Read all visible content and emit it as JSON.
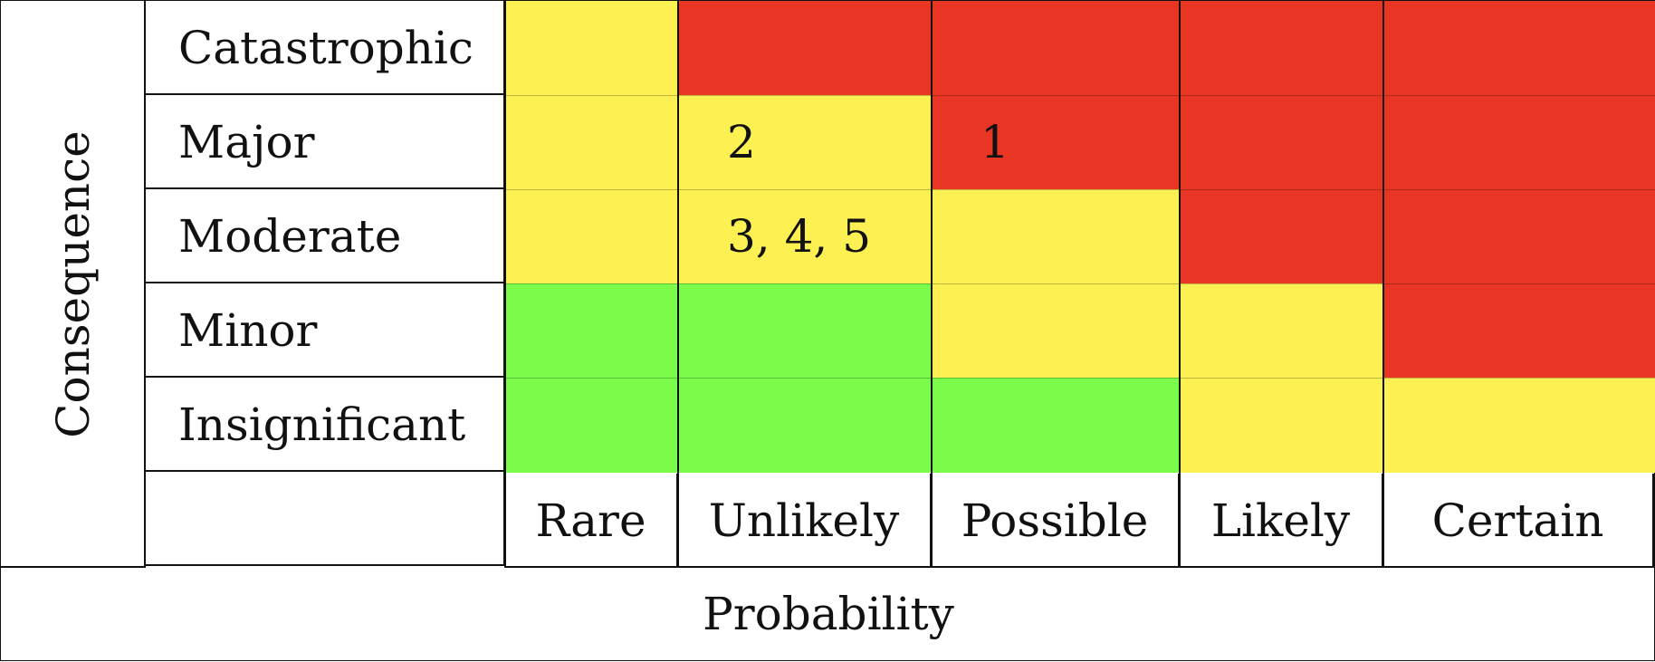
{
  "y_axis_title": "Consequence",
  "x_axis_title": "Probability",
  "consequence_levels": [
    "Catastrophic",
    "Major",
    "Moderate",
    "Minor",
    "Insignificant"
  ],
  "probability_levels": [
    "Rare",
    "Unlikely",
    "Possible",
    "Likely",
    "Certain"
  ],
  "colors": {
    "low": "#7bfc4b",
    "medium": "#fdf052",
    "high": "#e93624"
  },
  "matrix": [
    [
      "medium",
      "high",
      "high",
      "high",
      "high"
    ],
    [
      "medium",
      "medium",
      "high",
      "high",
      "high"
    ],
    [
      "medium",
      "medium",
      "medium",
      "high",
      "high"
    ],
    [
      "low",
      "low",
      "medium",
      "medium",
      "high"
    ],
    [
      "low",
      "low",
      "low",
      "medium",
      "medium"
    ]
  ],
  "cell_entries": [
    [
      "",
      "",
      "",
      "",
      ""
    ],
    [
      "",
      "2",
      "1",
      "",
      ""
    ],
    [
      "",
      "3, 4, 5",
      "",
      "",
      ""
    ],
    [
      "",
      "",
      "",
      "",
      ""
    ],
    [
      "",
      "",
      "",
      "",
      ""
    ]
  ]
}
